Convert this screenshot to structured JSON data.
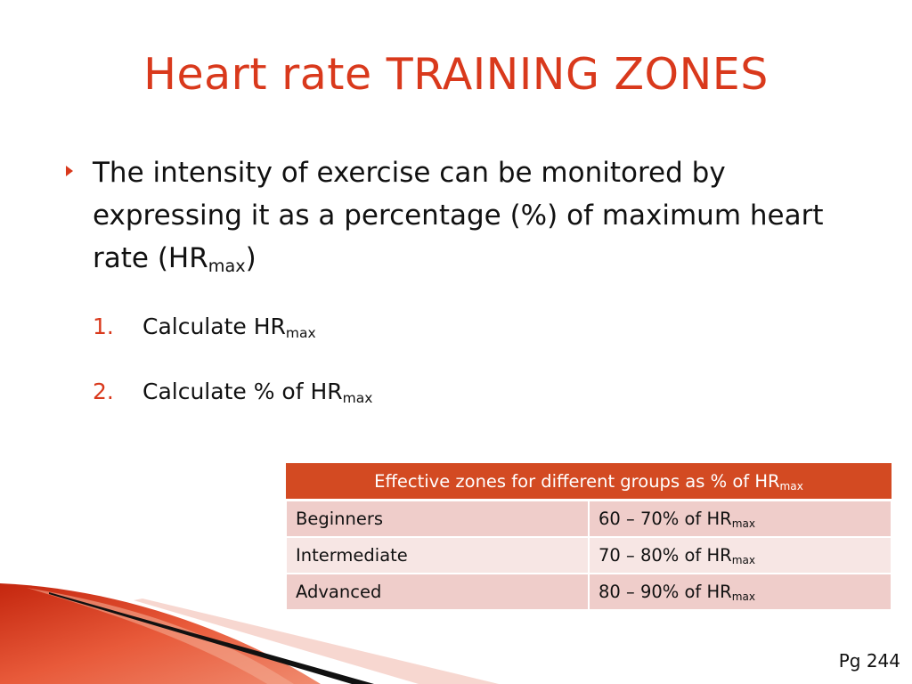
{
  "slide": {
    "title": "Heart rate TRAINING ZONES",
    "bullet": {
      "text": "The intensity of exercise can be monitored by expressing it as a percentage (%) of maximum heart rate (HR",
      "sub": "max",
      "after": ")"
    },
    "steps": [
      {
        "number": "1.",
        "text": "Calculate HR",
        "sub": "max"
      },
      {
        "number": "2.",
        "text": "Calculate % of HR",
        "sub": "max"
      }
    ],
    "table": {
      "header": {
        "text": "Effective zones for different groups as % of HR",
        "sub": "max"
      },
      "rows": [
        {
          "group": "Beginners",
          "range": "60 – 70% of HR",
          "sub": "max"
        },
        {
          "group": "Intermediate",
          "range": "70 – 80% of HR",
          "sub": "max"
        },
        {
          "group": "Advanced",
          "range": "80 – 90% of HR",
          "sub": "max"
        }
      ]
    },
    "page_number": "Pg 244"
  },
  "colors": {
    "accent": "#d9391c",
    "table_header": "#d34a22",
    "row_dark": "#efcdca",
    "row_light": "#f7e6e4"
  }
}
